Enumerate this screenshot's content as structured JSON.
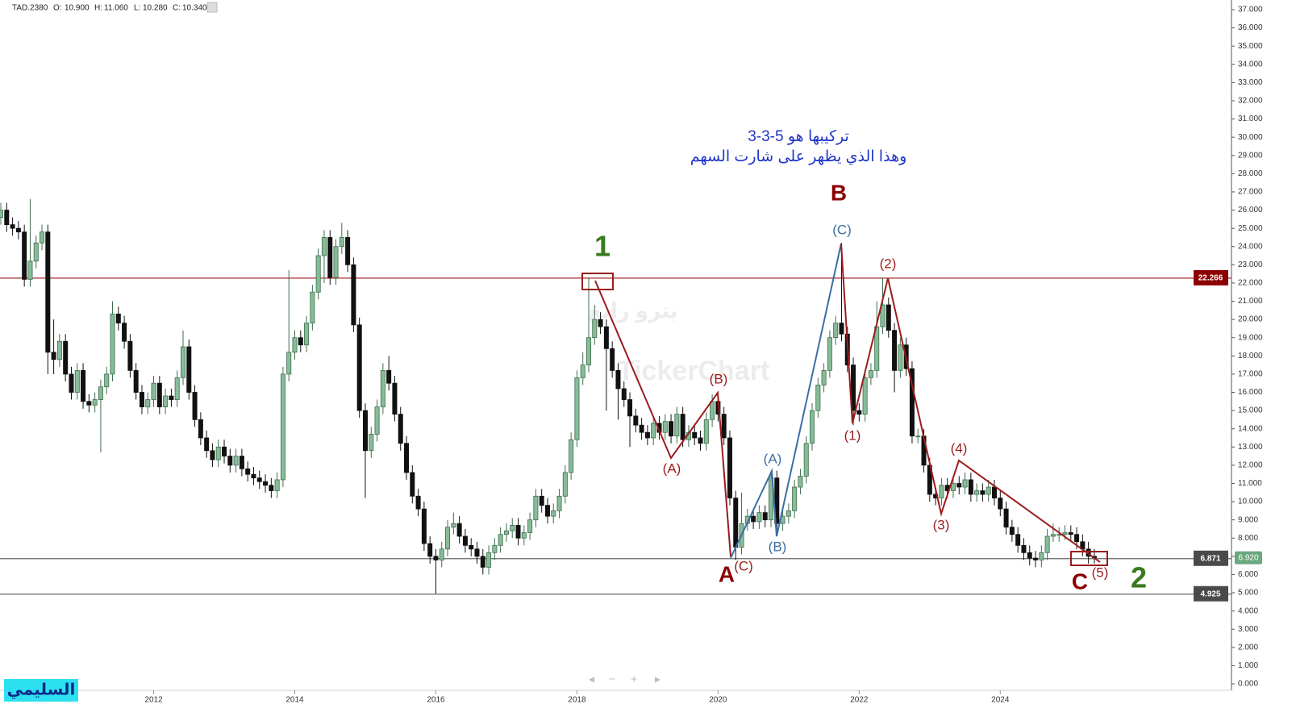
{
  "chart_data": {
    "type": "candlestick",
    "legend": {
      "symbol": "TAD.2380",
      "items": [
        {
          "key": "O:",
          "value": "10.900"
        },
        {
          "key": "H:",
          "value": "11.060"
        },
        {
          "key": "L:",
          "value": "10.280"
        },
        {
          "key": "C:",
          "value": "10.340"
        }
      ]
    },
    "annotations": {
      "note_line1": "تركيبها هو 5-3-3",
      "note_line2": "وهذا الذي يظهر على شارت السهم",
      "author": "السليمي",
      "watermark": "TickerChart",
      "watermark_ar": "بترو رابغ",
      "wave_labels": [
        "1",
        "B",
        "(C)",
        "(2)",
        "(B)",
        "(A)",
        "(1)",
        "(4)",
        "(A)",
        "(B)",
        "(3)",
        "A",
        "(C)",
        "C",
        "(5)",
        "2"
      ]
    },
    "up_color": "#86bc98",
    "down_color": "#111111",
    "grid": false,
    "categories": [
      null,
      null,
      null,
      null,
      null,
      null,
      null,
      null,
      null,
      null,
      null,
      null,
      null,
      null,
      null,
      null,
      null,
      null,
      null,
      null,
      null,
      null,
      null,
      null,
      null,
      null,
      "2012",
      null,
      null,
      null,
      null,
      null,
      null,
      null,
      null,
      null,
      null,
      null,
      null,
      null,
      null,
      null,
      null,
      null,
      null,
      null,
      null,
      null,
      null,
      null,
      "2014",
      null,
      null,
      null,
      null,
      null,
      null,
      null,
      null,
      null,
      null,
      null,
      null,
      null,
      null,
      null,
      null,
      null,
      null,
      null,
      null,
      null,
      null,
      null,
      "2016",
      null,
      null,
      null,
      null,
      null,
      null,
      null,
      null,
      null,
      null,
      null,
      null,
      null,
      null,
      null,
      null,
      null,
      null,
      null,
      null,
      null,
      null,
      null,
      "2018",
      null,
      null,
      null,
      null,
      null,
      null,
      null,
      null,
      null,
      null,
      null,
      null,
      null,
      null,
      null,
      null,
      null,
      null,
      null,
      null,
      null,
      null,
      null,
      "2020",
      null,
      null,
      null,
      null,
      null,
      null,
      null,
      null,
      null,
      null,
      null,
      null,
      null,
      null,
      null,
      null,
      null,
      null,
      null,
      null,
      null,
      null,
      null,
      "2022",
      null,
      null,
      null,
      null,
      null,
      null,
      null,
      null,
      null,
      null,
      null,
      null,
      null,
      null,
      null,
      null,
      null,
      null,
      null,
      null,
      null,
      null,
      null,
      "2024",
      null,
      null,
      null,
      null,
      null,
      null,
      null,
      null,
      null,
      null,
      null,
      null,
      null,
      null,
      null,
      null
    ],
    "open": [
      25.6,
      26.0,
      25.2,
      25.0,
      24.8,
      22.2,
      23.2,
      24.2,
      24.8,
      18.2,
      17.8,
      18.8,
      17.0,
      16.0,
      17.2,
      15.5,
      15.3,
      15.6,
      16.3,
      17.0,
      20.3,
      19.8,
      18.8,
      17.2,
      16.0,
      15.2,
      15.6,
      16.5,
      15.2,
      15.8,
      15.6,
      16.8,
      18.5,
      16.0,
      14.5,
      13.5,
      12.8,
      12.3,
      13.0,
      12.5,
      12.0,
      12.5,
      11.8,
      11.5,
      11.3,
      11.1,
      10.9,
      10.6,
      11.2,
      17.0,
      18.2,
      19.0,
      18.6,
      19.8,
      21.5,
      23.5,
      24.5,
      22.3,
      24.0,
      24.5,
      23.0,
      19.7,
      15.0,
      12.8,
      13.7,
      15.2,
      17.2,
      16.5,
      14.8,
      13.2,
      11.6,
      10.3,
      9.6,
      7.7,
      7.0,
      6.8,
      7.4,
      8.6,
      8.8,
      8.1,
      7.6,
      7.4,
      7.0,
      6.4,
      7.2,
      7.6,
      8.2,
      8.4,
      8.7,
      8.0,
      8.3,
      9.0,
      10.3,
      9.8,
      9.2,
      9.5,
      10.3,
      11.6,
      13.4,
      16.8,
      17.5,
      19.0,
      20.0,
      19.6,
      18.4,
      17.2,
      16.2,
      15.6,
      14.7,
      14.2,
      13.8,
      13.5,
      14.3,
      13.8,
      14.4,
      13.6,
      14.8,
      13.4,
      13.8,
      13.5,
      13.2,
      14.5,
      15.5,
      14.8,
      13.5,
      10.2,
      7.5,
      8.8,
      9.2,
      8.9,
      9.4,
      9.0,
      11.3,
      8.8,
      9.2,
      9.5,
      10.8,
      11.4,
      13.2,
      15.0,
      16.4,
      17.2,
      19.0,
      19.8,
      19.2,
      17.5,
      15.0,
      14.8,
      16.8,
      17.2,
      19.6,
      20.8,
      19.4,
      17.2,
      18.6,
      17.3,
      13.6,
      13.6,
      12.0,
      10.4,
      10.2,
      10.9,
      10.6,
      11.0,
      10.8,
      11.2,
      10.4,
      10.6,
      10.4,
      10.8,
      10.2,
      9.6,
      8.6,
      8.2,
      7.6,
      7.2,
      6.9,
      6.8,
      7.2,
      8.1,
      8.2,
      8.2,
      8.3,
      8.2,
      7.8,
      7.4,
      7.0
    ],
    "high": [
      26.4,
      26.4,
      25.6,
      25.4,
      25.2,
      26.6,
      24.6,
      25.2,
      25.2,
      20.0,
      19.2,
      19.2,
      17.4,
      17.6,
      17.6,
      15.9,
      16.0,
      16.7,
      17.4,
      21.0,
      20.7,
      20.2,
      19.2,
      17.6,
      16.4,
      16.0,
      16.9,
      16.9,
      16.2,
      16.2,
      17.2,
      19.4,
      18.9,
      16.4,
      14.9,
      13.9,
      13.2,
      13.4,
      13.4,
      12.9,
      12.9,
      12.9,
      12.2,
      11.9,
      11.7,
      11.5,
      11.3,
      11.6,
      17.4,
      22.7,
      19.4,
      19.4,
      20.2,
      21.9,
      23.9,
      24.9,
      24.9,
      24.4,
      25.3,
      24.9,
      23.4,
      20.1,
      15.4,
      14.1,
      15.6,
      17.6,
      18.0,
      16.9,
      15.2,
      13.6,
      12.0,
      10.7,
      10.0,
      8.1,
      7.4,
      7.8,
      9.0,
      9.4,
      9.2,
      8.5,
      8.0,
      7.8,
      7.4,
      7.6,
      8.0,
      8.6,
      8.8,
      9.1,
      9.1,
      8.7,
      9.4,
      10.7,
      10.7,
      10.2,
      9.9,
      10.7,
      12.0,
      13.8,
      17.2,
      18.2,
      22.3,
      20.8,
      20.4,
      20.0,
      18.8,
      17.6,
      16.6,
      16.0,
      15.1,
      14.6,
      14.2,
      14.7,
      14.7,
      14.8,
      14.8,
      15.2,
      15.2,
      14.2,
      14.2,
      13.9,
      14.9,
      15.9,
      15.9,
      15.2,
      13.9,
      10.6,
      10.5,
      9.6,
      9.6,
      9.8,
      9.8,
      11.7,
      11.7,
      9.6,
      9.9,
      11.2,
      11.8,
      13.6,
      15.4,
      16.8,
      17.6,
      19.4,
      20.2,
      24.2,
      19.6,
      17.9,
      15.4,
      17.2,
      17.6,
      21.0,
      22.3,
      21.2,
      19.8,
      19.0,
      19.0,
      17.7,
      14.0,
      14.0,
      12.4,
      10.6,
      11.3,
      11.3,
      11.4,
      11.4,
      11.6,
      11.6,
      11.0,
      11.0,
      11.2,
      11.2,
      10.6,
      10.0,
      9.0,
      8.6,
      8.0,
      7.6,
      7.3,
      7.6,
      8.5,
      8.8,
      8.6,
      8.7,
      8.7,
      8.6,
      8.2,
      7.8,
      7.4
    ],
    "low": [
      25.2,
      24.8,
      24.6,
      24.4,
      21.8,
      21.8,
      22.8,
      23.8,
      17.0,
      17.0,
      17.4,
      16.6,
      15.6,
      15.6,
      15.1,
      14.9,
      14.9,
      12.7,
      15.9,
      16.6,
      19.4,
      18.4,
      16.8,
      15.6,
      14.8,
      14.8,
      15.2,
      14.8,
      14.8,
      15.2,
      15.2,
      16.4,
      15.6,
      14.1,
      13.1,
      12.4,
      11.9,
      11.9,
      12.1,
      11.6,
      11.6,
      11.4,
      11.1,
      10.9,
      10.7,
      10.5,
      10.2,
      10.2,
      10.8,
      16.6,
      17.8,
      18.2,
      18.2,
      19.4,
      21.1,
      22.0,
      21.9,
      21.9,
      23.6,
      22.6,
      19.3,
      14.6,
      10.2,
      12.4,
      13.3,
      14.8,
      16.1,
      14.4,
      12.8,
      11.2,
      9.9,
      9.2,
      7.3,
      6.6,
      4.95,
      6.4,
      7.0,
      8.2,
      7.7,
      7.2,
      7.0,
      6.6,
      6.0,
      6.0,
      6.8,
      7.2,
      7.8,
      8.0,
      7.6,
      7.6,
      7.9,
      8.6,
      9.4,
      8.8,
      8.8,
      9.1,
      9.9,
      11.2,
      13.0,
      16.4,
      17.1,
      18.6,
      19.2,
      15.0,
      16.8,
      14.5,
      15.2,
      13.0,
      13.8,
      13.4,
      13.1,
      13.1,
      13.4,
      13.4,
      13.2,
      13.2,
      13.0,
      13.0,
      13.1,
      12.8,
      12.8,
      14.1,
      14.4,
      13.1,
      9.8,
      6.8,
      7.1,
      8.4,
      8.5,
      8.5,
      8.6,
      8.6,
      8.2,
      8.4,
      8.8,
      9.1,
      10.4,
      11.0,
      12.8,
      14.6,
      16.0,
      16.8,
      18.6,
      18.8,
      17.1,
      14.2,
      14.4,
      14.4,
      16.4,
      16.8,
      19.2,
      19.0,
      16.0,
      16.8,
      16.9,
      13.2,
      13.2,
      11.6,
      10.0,
      9.8,
      9.8,
      10.2,
      10.2,
      10.4,
      10.4,
      10.0,
      10.0,
      10.0,
      10.0,
      9.8,
      9.2,
      8.2,
      7.8,
      7.2,
      6.8,
      6.5,
      6.4,
      6.4,
      6.8,
      7.8,
      7.8,
      7.9,
      7.8,
      7.4,
      7.0,
      6.6,
      6.6
    ],
    "close": [
      26.0,
      25.2,
      25.0,
      24.8,
      22.2,
      23.2,
      24.2,
      24.8,
      18.2,
      17.8,
      18.8,
      17.0,
      16.0,
      17.2,
      15.5,
      15.3,
      15.6,
      16.3,
      17.0,
      20.3,
      19.8,
      18.8,
      17.2,
      16.0,
      15.2,
      15.6,
      16.5,
      15.2,
      15.8,
      15.6,
      16.8,
      18.5,
      16.0,
      14.5,
      13.5,
      12.8,
      12.3,
      13.0,
      12.5,
      12.0,
      12.5,
      11.8,
      11.5,
      11.3,
      11.1,
      10.9,
      10.6,
      11.2,
      17.0,
      18.2,
      19.0,
      18.6,
      19.8,
      21.5,
      23.5,
      24.5,
      22.3,
      24.0,
      24.5,
      23.0,
      19.7,
      15.0,
      12.8,
      13.7,
      15.2,
      17.2,
      16.5,
      14.8,
      13.2,
      11.6,
      10.3,
      9.6,
      7.7,
      7.0,
      6.8,
      7.4,
      8.6,
      8.8,
      8.1,
      7.6,
      7.4,
      7.0,
      6.4,
      7.2,
      7.6,
      8.2,
      8.4,
      8.7,
      8.0,
      8.3,
      9.0,
      10.3,
      9.8,
      9.2,
      9.5,
      10.3,
      11.6,
      13.4,
      16.8,
      17.5,
      19.0,
      20.0,
      19.6,
      18.4,
      17.2,
      16.2,
      15.6,
      14.7,
      14.2,
      13.8,
      13.5,
      14.3,
      13.8,
      14.4,
      13.6,
      14.8,
      13.4,
      13.8,
      13.5,
      13.2,
      14.5,
      15.5,
      14.8,
      13.5,
      10.2,
      7.5,
      8.8,
      9.2,
      8.9,
      9.4,
      9.0,
      11.3,
      8.8,
      9.2,
      9.5,
      10.8,
      11.4,
      13.2,
      15.0,
      16.4,
      17.2,
      19.0,
      19.8,
      19.2,
      17.5,
      15.0,
      14.8,
      16.8,
      17.2,
      19.6,
      20.8,
      19.4,
      17.2,
      18.6,
      17.3,
      13.6,
      13.6,
      12.0,
      10.4,
      10.2,
      10.9,
      10.6,
      11.0,
      10.8,
      11.2,
      10.4,
      10.6,
      10.4,
      10.8,
      10.2,
      9.6,
      8.6,
      8.2,
      7.6,
      7.2,
      6.9,
      6.8,
      7.2,
      8.1,
      8.2,
      8.2,
      8.3,
      8.2,
      7.8,
      7.4,
      7.0,
      6.92
    ],
    "ylim": [
      0,
      37.5
    ],
    "yticks": [
      {
        "value": 0,
        "label": "0.000"
      },
      {
        "value": 1,
        "label": "1.000"
      },
      {
        "value": 2,
        "label": "2.000"
      },
      {
        "value": 3,
        "label": "3.000"
      },
      {
        "value": 4,
        "label": "4.000"
      },
      {
        "value": 5,
        "label": "5.000"
      },
      {
        "value": 6,
        "label": "6.000"
      },
      {
        "value": 7,
        "label": "7.000"
      },
      {
        "value": 8,
        "label": "8.000"
      },
      {
        "value": 9,
        "label": "9.000"
      },
      {
        "value": 10,
        "label": "10.000"
      },
      {
        "value": 11,
        "label": "11.000"
      },
      {
        "value": 12,
        "label": "12.000"
      },
      {
        "value": 13,
        "label": "13.000"
      },
      {
        "value": 14,
        "label": "14.000"
      },
      {
        "value": 15,
        "label": "15.000"
      },
      {
        "value": 16,
        "label": "16.000"
      },
      {
        "value": 17,
        "label": "17.000"
      },
      {
        "value": 18,
        "label": "18.000"
      },
      {
        "value": 19,
        "label": "19.000"
      },
      {
        "value": 20,
        "label": "20.000"
      },
      {
        "value": 21,
        "label": "21.000"
      },
      {
        "value": 22,
        "label": "22.000"
      },
      {
        "value": 23,
        "label": "23.000"
      },
      {
        "value": 24,
        "label": "24.000"
      },
      {
        "value": 25,
        "label": "25.000"
      },
      {
        "value": 26,
        "label": "26.000"
      },
      {
        "value": 27,
        "label": "27.000"
      },
      {
        "value": 28,
        "label": "28.000"
      },
      {
        "value": 29,
        "label": "29.000"
      },
      {
        "value": 30,
        "label": "30.000"
      },
      {
        "value": 31,
        "label": "31.000"
      },
      {
        "value": 32,
        "label": "32.000"
      },
      {
        "value": 33,
        "label": "33.000"
      },
      {
        "value": 34,
        "label": "34.000"
      },
      {
        "value": 35,
        "label": "35.000"
      },
      {
        "value": 36,
        "label": "36.000"
      },
      {
        "value": 37,
        "label": "37.000"
      }
    ],
    "price_lines": [
      {
        "value": 22.266,
        "color": "#a52a2a",
        "box": "#8b0000"
      },
      {
        "value": 6.871,
        "color": "#666666",
        "box": "#4a4a4a"
      },
      {
        "value": 4.925,
        "color": "#666666",
        "box": "#4a4a4a"
      }
    ],
    "last_price": {
      "value": 6.92,
      "label": "6.920",
      "color": "#6aa87f"
    }
  }
}
